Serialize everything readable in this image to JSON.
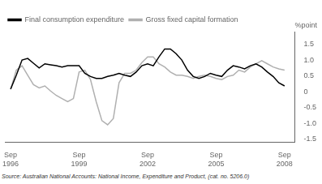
{
  "chart_data": {
    "type": "line",
    "ylabel": "%point",
    "annotations": [
      "Source: Australian National Accounts: National Income, Expenditure and Product, (cat. no. 5206.0)"
    ],
    "x": [
      1996.75,
      1997.0,
      1997.25,
      1997.5,
      1997.75,
      1998.0,
      1998.25,
      1998.5,
      1998.75,
      1999.0,
      1999.25,
      1999.5,
      1999.75,
      2000.0,
      2000.25,
      2000.5,
      2000.75,
      2001.0,
      2001.25,
      2001.5,
      2001.75,
      2002.0,
      2002.25,
      2002.5,
      2002.75,
      2003.0,
      2003.25,
      2003.5,
      2003.75,
      2004.0,
      2004.25,
      2004.5,
      2004.75,
      2005.0,
      2005.25,
      2005.5,
      2005.75,
      2006.0,
      2006.25,
      2006.5,
      2006.75,
      2007.0,
      2007.25,
      2007.5,
      2007.75,
      2008.0,
      2008.25,
      2008.5,
      2008.75
    ],
    "series": [
      {
        "name": "Final consumption expenditure",
        "color": "#000000",
        "values": [
          0.08,
          0.52,
          1.0,
          1.05,
          0.9,
          0.75,
          0.88,
          0.85,
          0.82,
          0.78,
          0.82,
          0.82,
          0.82,
          0.58,
          0.48,
          0.42,
          0.42,
          0.48,
          0.52,
          0.58,
          0.52,
          0.48,
          0.62,
          0.82,
          0.88,
          0.82,
          1.1,
          1.35,
          1.35,
          1.2,
          1.0,
          0.68,
          0.48,
          0.42,
          0.48,
          0.58,
          0.52,
          0.48,
          0.68,
          0.82,
          0.78,
          0.72,
          0.82,
          0.88,
          0.78,
          0.62,
          0.48,
          0.28,
          0.18
        ]
      },
      {
        "name": "Gross fixed capital formation",
        "color": "#b0b0b0",
        "values": [
          0.08,
          0.68,
          0.82,
          0.52,
          0.22,
          0.12,
          0.18,
          0.02,
          -0.12,
          -0.22,
          -0.32,
          -0.22,
          0.62,
          0.68,
          0.38,
          -0.32,
          -0.92,
          -1.05,
          -0.85,
          0.28,
          0.58,
          0.58,
          0.68,
          0.92,
          1.1,
          1.1,
          0.88,
          0.78,
          0.62,
          0.52,
          0.52,
          0.48,
          0.42,
          0.48,
          0.52,
          0.48,
          0.42,
          0.38,
          0.48,
          0.52,
          0.68,
          0.62,
          0.78,
          0.88,
          0.98,
          0.88,
          0.78,
          0.72,
          0.68
        ]
      }
    ],
    "xlim": [
      1996.5,
      2009.2
    ],
    "xticks": [
      {
        "value": 1996.75,
        "label": "Sep\n1996"
      },
      {
        "value": 1999.75,
        "label": "Sep\n1999"
      },
      {
        "value": 2002.75,
        "label": "Sep\n2002"
      },
      {
        "value": 2005.75,
        "label": "Sep\n2005"
      },
      {
        "value": 2008.75,
        "label": "Sep\n2008"
      }
    ],
    "ylim": [
      -1.6,
      1.9
    ],
    "yticks": [
      -1.5,
      {
        "value": -1.0,
        "label": "-1.0"
      },
      -0.5,
      0,
      0.5,
      {
        "value": 1.0,
        "label": "1.0"
      },
      1.5
    ],
    "grid": false,
    "legend": "upper left"
  }
}
